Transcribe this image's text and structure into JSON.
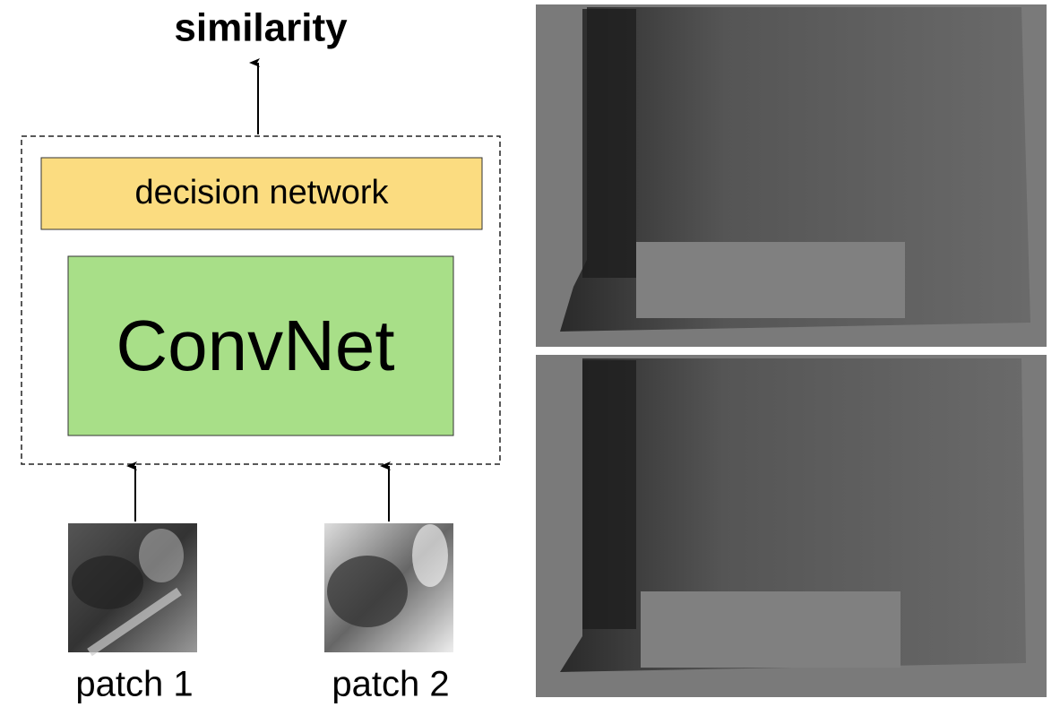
{
  "header": {
    "title": "similarity"
  },
  "nodes": [
    {
      "label": "decision network"
    },
    {
      "label": "ConvNet"
    }
  ],
  "inputs": [
    {
      "label": "patch 1"
    },
    {
      "label": "patch 2"
    }
  ]
}
